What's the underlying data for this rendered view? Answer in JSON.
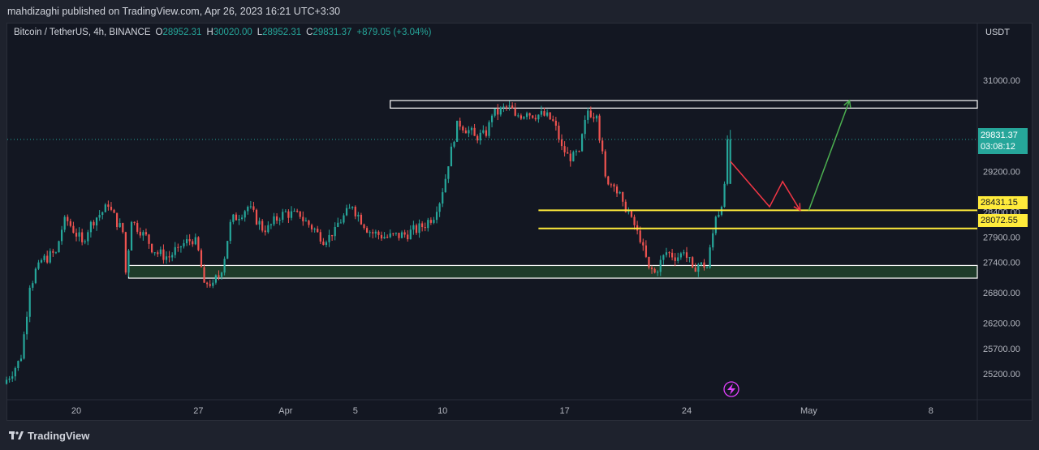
{
  "header": {
    "publisher_line": "mahdizaghi published on TradingView.com, Apr 26, 2023 16:21 UTC+3:30"
  },
  "legend": {
    "symbol": "Bitcoin / TetherUS, 4h, BINANCE",
    "open_key": "O",
    "open": "28952.31",
    "high_key": "H",
    "high": "30020.00",
    "low_key": "L",
    "low": "28952.31",
    "close_key": "C",
    "close": "29831.37",
    "change": "+879.05 (+3.04%)"
  },
  "axis": {
    "currency": "USDT"
  },
  "price_tag": {
    "price": "29831.37",
    "countdown": "03:08:12",
    "color": "#26a69a"
  },
  "level_tags": {
    "upper": "28431.15",
    "lower": "28072.55",
    "color": "#ffeb3b"
  },
  "footer": {
    "brand": "TradingView"
  },
  "icons": {
    "replay": "lightning-icon",
    "logo": "tradingview-logo-icon"
  },
  "colors": {
    "up": "#26a69a",
    "down": "#ef5350",
    "support_zone_fill": "#1e3b2a",
    "zone_border": "#ffffff",
    "level_line": "#ffeb3b",
    "arrow_up": "#4caf50",
    "arrow_down": "#f23645"
  },
  "chart_data": {
    "type": "candlestick",
    "title": "Bitcoin / TetherUS, 4h, BINANCE",
    "ylabel": "USDT",
    "y_ticks": [
      31000,
      30000,
      29200,
      28400,
      27900,
      27400,
      26800,
      26200,
      25700,
      25200
    ],
    "y_tick_labels": [
      "31000.00",
      "30000.00",
      "29200.00",
      "28400.00",
      "27900.00",
      "27400.00",
      "26800.00",
      "26200.00",
      "25700.00",
      "25200.00"
    ],
    "x_tick_labels": [
      "20",
      "27",
      "Apr",
      "5",
      "10",
      "17",
      "24",
      "May",
      "8"
    ],
    "x_tick_dates": [
      "2023-03-20",
      "2023-03-27",
      "2023-04-01",
      "2023-04-05",
      "2023-04-10",
      "2023-04-17",
      "2023-04-24",
      "2023-05-01",
      "2023-05-08"
    ],
    "ylim": [
      24900,
      31450
    ],
    "series": [
      {
        "name": "Bitcoin / TetherUS",
        "anchors": [
          {
            "date": "2023-03-16T00:00",
            "price": 25000
          },
          {
            "date": "2023-03-17T00:00",
            "price": 25500
          },
          {
            "date": "2023-03-17T12:00",
            "price": 26900
          },
          {
            "date": "2023-03-18T00:00",
            "price": 27400
          },
          {
            "date": "2023-03-19T00:00",
            "price": 27600
          },
          {
            "date": "2023-03-19T12:00",
            "price": 28300
          },
          {
            "date": "2023-03-20T12:00",
            "price": 27800
          },
          {
            "date": "2023-03-21T00:00",
            "price": 28200
          },
          {
            "date": "2023-03-22T00:00",
            "price": 28500
          },
          {
            "date": "2023-03-22T20:00",
            "price": 28000
          },
          {
            "date": "2023-03-23T00:00",
            "price": 27200
          },
          {
            "date": "2023-03-23T08:00",
            "price": 28200
          },
          {
            "date": "2023-03-24T00:00",
            "price": 28000
          },
          {
            "date": "2023-03-24T16:00",
            "price": 27600
          },
          {
            "date": "2023-03-25T12:00",
            "price": 27500
          },
          {
            "date": "2023-03-26T00:00",
            "price": 27700
          },
          {
            "date": "2023-03-27T00:00",
            "price": 27900
          },
          {
            "date": "2023-03-27T12:00",
            "price": 27000
          },
          {
            "date": "2023-03-28T00:00",
            "price": 27000
          },
          {
            "date": "2023-03-28T12:00",
            "price": 27200
          },
          {
            "date": "2023-03-29T00:00",
            "price": 28200
          },
          {
            "date": "2023-03-30T00:00",
            "price": 28500
          },
          {
            "date": "2023-03-31T00:00",
            "price": 28000
          },
          {
            "date": "2023-04-01T00:00",
            "price": 28400
          },
          {
            "date": "2023-04-02T00:00",
            "price": 28300
          },
          {
            "date": "2023-04-03T00:00",
            "price": 28000
          },
          {
            "date": "2023-04-03T12:00",
            "price": 27800
          },
          {
            "date": "2023-04-04T00:00",
            "price": 28100
          },
          {
            "date": "2023-04-05T00:00",
            "price": 28500
          },
          {
            "date": "2023-04-06T00:00",
            "price": 28000
          },
          {
            "date": "2023-04-07T00:00",
            "price": 27900
          },
          {
            "date": "2023-04-08T00:00",
            "price": 27950
          },
          {
            "date": "2023-04-09T00:00",
            "price": 28100
          },
          {
            "date": "2023-04-09T20:00",
            "price": 28400
          },
          {
            "date": "2023-04-10T12:00",
            "price": 29300
          },
          {
            "date": "2023-04-11T00:00",
            "price": 30200
          },
          {
            "date": "2023-04-12T00:00",
            "price": 29900
          },
          {
            "date": "2023-04-12T16:00",
            "price": 29900
          },
          {
            "date": "2023-04-13T00:00",
            "price": 30300
          },
          {
            "date": "2023-04-14T00:00",
            "price": 30500
          },
          {
            "date": "2023-04-14T08:00",
            "price": 30300
          },
          {
            "date": "2023-04-15T00:00",
            "price": 30350
          },
          {
            "date": "2023-04-16T00:00",
            "price": 30300
          },
          {
            "date": "2023-04-16T12:00",
            "price": 30200
          },
          {
            "date": "2023-04-17T00:00",
            "price": 29700
          },
          {
            "date": "2023-04-17T12:00",
            "price": 29400
          },
          {
            "date": "2023-04-18T00:00",
            "price": 29600
          },
          {
            "date": "2023-04-18T12:00",
            "price": 30400
          },
          {
            "date": "2023-04-19T00:00",
            "price": 30300
          },
          {
            "date": "2023-04-19T12:00",
            "price": 29100
          },
          {
            "date": "2023-04-20T00:00",
            "price": 28900
          },
          {
            "date": "2023-04-20T12:00",
            "price": 28600
          },
          {
            "date": "2023-04-21T00:00",
            "price": 28300
          },
          {
            "date": "2023-04-21T12:00",
            "price": 27800
          },
          {
            "date": "2023-04-22T00:00",
            "price": 27300
          },
          {
            "date": "2023-04-22T08:00",
            "price": 27200
          },
          {
            "date": "2023-04-23T00:00",
            "price": 27600
          },
          {
            "date": "2023-04-23T16:00",
            "price": 27500
          },
          {
            "date": "2023-04-24T00:00",
            "price": 27600
          },
          {
            "date": "2023-04-24T12:00",
            "price": 27300
          },
          {
            "date": "2023-04-25T00:00",
            "price": 27400
          },
          {
            "date": "2023-04-25T08:00",
            "price": 27300
          },
          {
            "date": "2023-04-25T20:00",
            "price": 28300
          },
          {
            "date": "2023-04-26T04:00",
            "price": 28500
          },
          {
            "date": "2023-04-26T08:00",
            "price": 28952.31
          },
          {
            "date": "2023-04-26T12:00",
            "price": 29831.37
          }
        ]
      }
    ],
    "last": {
      "open": 28952.31,
      "high": 30020.0,
      "low": 28952.31,
      "close": 29831.37
    },
    "zones": [
      {
        "name": "resistance-zone",
        "top": 30600,
        "bottom": 30450,
        "start": "2023-04-07T00:00",
        "end": "right-edge"
      },
      {
        "name": "support-zone",
        "top": 27340,
        "bottom": 27090,
        "start": "2023-03-23T00:00",
        "end": "right-edge"
      }
    ],
    "levels": [
      {
        "name": "upper-level",
        "price": 28431.15,
        "start": "2023-04-15T12:00"
      },
      {
        "name": "lower-level",
        "price": 28072.55,
        "start": "2023-04-15T12:00"
      }
    ],
    "projection_paths": [
      {
        "name": "bearish-path",
        "color": "#f23645",
        "points": [
          {
            "date": "2023-04-26T12:00",
            "price": 29400
          },
          {
            "date": "2023-04-28T18:00",
            "price": 28500
          },
          {
            "date": "2023-04-29T12:00",
            "price": 29000
          },
          {
            "date": "2023-04-30T12:00",
            "price": 28431.15
          }
        ]
      },
      {
        "name": "bullish-path",
        "color": "#4caf50",
        "points": [
          {
            "date": "2023-05-01T00:00",
            "price": 28431.15
          },
          {
            "date": "2023-05-03T08:00",
            "price": 30600
          }
        ]
      }
    ],
    "grid": false,
    "legend_position": "top-left"
  }
}
